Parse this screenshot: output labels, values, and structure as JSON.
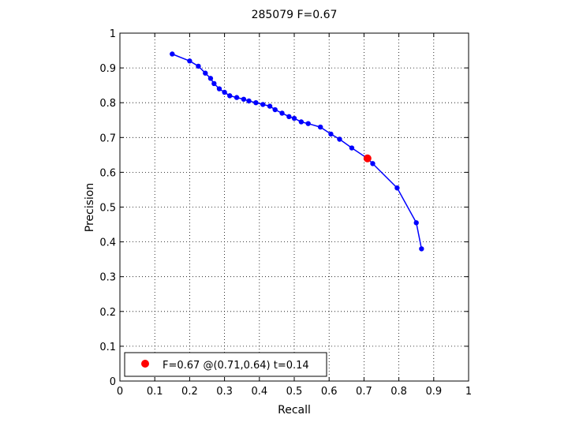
{
  "chart_data": {
    "type": "line",
    "title": "285079 F=0.67",
    "xlabel": "Recall",
    "ylabel": "Precision",
    "xlim": [
      0,
      1
    ],
    "ylim": [
      0,
      1
    ],
    "xticks": [
      0,
      0.1,
      0.2,
      0.3,
      0.4,
      0.5,
      0.6,
      0.7,
      0.8,
      0.9,
      1
    ],
    "yticks": [
      0,
      0.1,
      0.2,
      0.3,
      0.4,
      0.5,
      0.6,
      0.7,
      0.8,
      0.9,
      1
    ],
    "xtick_labels": [
      "0",
      "0.1",
      "0.2",
      "0.3",
      "0.4",
      "0.5",
      "0.6",
      "0.7",
      "0.8",
      "0.9",
      "1"
    ],
    "ytick_labels": [
      "0",
      "0.1",
      "0.2",
      "0.3",
      "0.4",
      "0.5",
      "0.6",
      "0.7",
      "0.8",
      "0.9",
      "1"
    ],
    "grid": true,
    "legend_position": "bottom-left",
    "series": [
      {
        "color": "#0000ff",
        "x": [
          0.15,
          0.2,
          0.225,
          0.245,
          0.26,
          0.27,
          0.285,
          0.3,
          0.315,
          0.335,
          0.355,
          0.37,
          0.39,
          0.41,
          0.43,
          0.445,
          0.465,
          0.485,
          0.5,
          0.52,
          0.54,
          0.575,
          0.605,
          0.63,
          0.665,
          0.71,
          0.725,
          0.795,
          0.85,
          0.865
        ],
        "y": [
          0.94,
          0.92,
          0.905,
          0.885,
          0.87,
          0.855,
          0.84,
          0.83,
          0.82,
          0.815,
          0.81,
          0.805,
          0.8,
          0.795,
          0.79,
          0.78,
          0.77,
          0.76,
          0.755,
          0.745,
          0.74,
          0.73,
          0.71,
          0.695,
          0.67,
          0.64,
          0.625,
          0.555,
          0.455,
          0.38
        ]
      }
    ],
    "highlight": {
      "x": 0.71,
      "y": 0.64,
      "color": "#ff0000",
      "label": "F=0.67 @(0.71,0.64) t=0.14"
    }
  }
}
